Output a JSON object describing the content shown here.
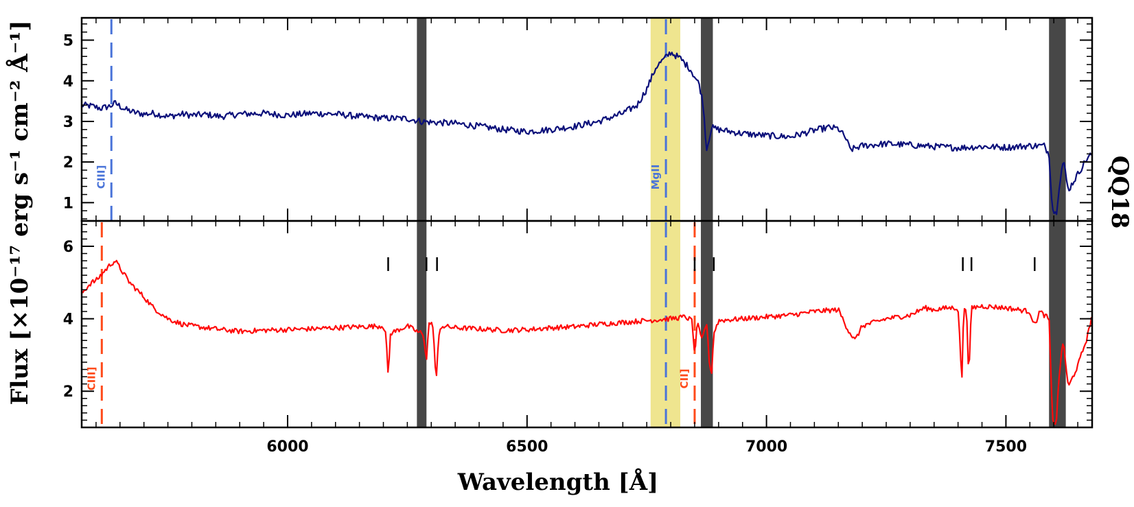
{
  "chart_data": [
    {
      "panel": "top",
      "type": "line",
      "object_label": "QQ18",
      "xlim": [
        5570,
        7680
      ],
      "ylim": [
        0.55,
        5.55
      ],
      "yticks": [
        1,
        2,
        3,
        4,
        5
      ],
      "color": "#0a0f7a",
      "series": [
        {
          "x": [
            5570,
            5590,
            5610,
            5630,
            5640,
            5660,
            5680,
            5700,
            5720,
            5750,
            5780,
            5800,
            5830,
            5860,
            5900,
            5950,
            6000,
            6050,
            6100,
            6150,
            6200,
            6250,
            6280,
            6300,
            6350,
            6400,
            6450,
            6500,
            6550,
            6600,
            6650,
            6700,
            6730,
            6750,
            6770,
            6790,
            6800,
            6820,
            6840,
            6860,
            6868,
            6875,
            6885,
            6900,
            6950,
            7000,
            7050,
            7100,
            7130,
            7150,
            7165,
            7175,
            7200,
            7250,
            7300,
            7350,
            7400,
            7450,
            7500,
            7550,
            7580,
            7590,
            7597,
            7605,
            7612,
            7620,
            7630,
            7650,
            7670,
            7680
          ],
          "y": [
            3.4,
            3.38,
            3.32,
            3.38,
            3.45,
            3.3,
            3.22,
            3.18,
            3.2,
            3.12,
            3.18,
            3.15,
            3.17,
            3.12,
            3.18,
            3.2,
            3.15,
            3.2,
            3.18,
            3.12,
            3.08,
            3.07,
            3.0,
            2.98,
            2.95,
            2.88,
            2.8,
            2.75,
            2.8,
            2.88,
            3.0,
            3.2,
            3.4,
            3.8,
            4.35,
            4.58,
            4.7,
            4.55,
            4.3,
            3.9,
            3.4,
            2.3,
            2.85,
            2.8,
            2.7,
            2.65,
            2.62,
            2.78,
            2.85,
            2.82,
            2.6,
            2.3,
            2.4,
            2.45,
            2.42,
            2.38,
            2.35,
            2.38,
            2.36,
            2.4,
            2.4,
            2.2,
            0.85,
            0.7,
            1.5,
            2.05,
            1.3,
            1.7,
            2.1,
            2.2
          ]
        }
      ],
      "noise_amp": 0.08
    },
    {
      "panel": "bottom",
      "type": "line",
      "xlim": [
        5570,
        7680
      ],
      "ylim": [
        1.0,
        6.7
      ],
      "yticks": [
        2,
        4,
        6
      ],
      "xticks": [
        6000,
        6500,
        7000,
        7500
      ],
      "xlabel": "Wavelength [Å]",
      "ylabel": "Flux [×10⁻¹⁷ erg s⁻¹ cm⁻² Å⁻¹]",
      "color": "#ff0a0a",
      "series": [
        {
          "x": [
            5570,
            5580,
            5590,
            5600,
            5610,
            5620,
            5630,
            5640,
            5650,
            5670,
            5700,
            5720,
            5750,
            5780,
            5800,
            5830,
            5860,
            5900,
            5950,
            6000,
            6050,
            6100,
            6150,
            6200,
            6205,
            6210,
            6215,
            6250,
            6270,
            6280,
            6285,
            6290,
            6295,
            6300,
            6305,
            6310,
            6315,
            6320,
            6350,
            6400,
            6450,
            6500,
            6550,
            6600,
            6650,
            6700,
            6750,
            6800,
            6830,
            6845,
            6850,
            6855,
            6865,
            6875,
            6880,
            6885,
            6890,
            6900,
            6950,
            7000,
            7050,
            7100,
            7150,
            7170,
            7185,
            7200,
            7250,
            7300,
            7330,
            7350,
            7380,
            7400,
            7408,
            7412,
            7418,
            7422,
            7428,
            7450,
            7500,
            7550,
            7560,
            7570,
            7580,
            7590,
            7597,
            7605,
            7612,
            7620,
            7630,
            7650,
            7670,
            7680
          ],
          "y": [
            4.7,
            4.85,
            5.0,
            5.05,
            5.2,
            5.35,
            5.5,
            5.6,
            5.4,
            5.0,
            4.6,
            4.3,
            4.0,
            3.85,
            3.8,
            3.75,
            3.7,
            3.65,
            3.68,
            3.7,
            3.72,
            3.75,
            3.78,
            3.8,
            3.6,
            2.4,
            3.6,
            3.8,
            3.65,
            3.6,
            3.4,
            2.9,
            3.85,
            3.9,
            3.6,
            2.2,
            3.4,
            3.8,
            3.75,
            3.72,
            3.68,
            3.7,
            3.75,
            3.78,
            3.85,
            3.9,
            3.95,
            4.0,
            4.05,
            3.95,
            2.9,
            3.9,
            3.4,
            3.9,
            2.9,
            2.4,
            3.6,
            3.95,
            4.0,
            4.05,
            4.1,
            4.2,
            4.25,
            3.7,
            3.4,
            3.8,
            4.0,
            4.1,
            4.3,
            4.25,
            4.3,
            4.3,
            2.3,
            4.3,
            4.3,
            2.3,
            4.3,
            4.35,
            4.3,
            4.2,
            3.8,
            4.2,
            4.1,
            4.0,
            1.2,
            1.1,
            2.6,
            3.4,
            2.1,
            2.7,
            3.5,
            4.1
          ]
        }
      ],
      "noise_amp": 0.07
    }
  ],
  "bands": [
    {
      "type": "telluric",
      "xmin": 6270,
      "xmax": 6290,
      "color": "#474747"
    },
    {
      "type": "telluric",
      "xmin": 6863,
      "xmax": 6888,
      "color": "#474747"
    },
    {
      "type": "telluric",
      "xmin": 7590,
      "xmax": 7625,
      "color": "#474747"
    },
    {
      "type": "line-window",
      "xmin": 6758,
      "xmax": 6820,
      "color": "#efe58f"
    }
  ],
  "line_markers": {
    "top": [
      {
        "x": 5632,
        "label": "CIII]",
        "color": "#4a74d9"
      },
      {
        "x": 6790,
        "label": "MgII",
        "color": "#4a74d9"
      }
    ],
    "bottom": [
      {
        "x": 5612,
        "label": "CIII]",
        "color": "#ff4a1a"
      },
      {
        "x": 6850,
        "label": "CII]",
        "color": "#ff4a1a"
      },
      {
        "x": 6790,
        "label": "",
        "color": "#4a74d9"
      }
    ]
  },
  "absorber_ticks": [
    6210,
    6290,
    6312,
    6850,
    6890,
    7410,
    7428,
    7560
  ]
}
